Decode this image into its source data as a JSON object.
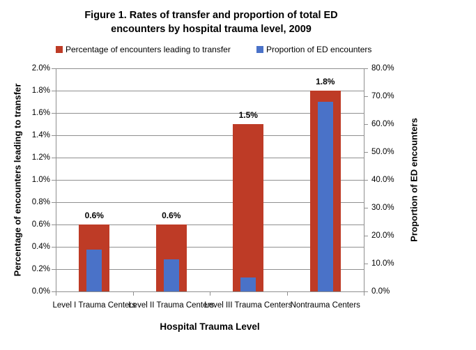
{
  "chart_data": {
    "type": "bar",
    "title": "Figure 1. Rates of transfer and proportion of total ED encounters by hospital trauma level, 2009",
    "title_lines": [
      "Figure 1. Rates of transfer and proportion of total ED",
      "encounters by hospital trauma level, 2009"
    ],
    "categories": [
      "Level I Trauma Centers",
      "Level II Trauma Centers",
      "Level III Trauma Centers",
      "Nontrauma Centers"
    ],
    "series": [
      {
        "name": "Percentage of encounters leading to transfer",
        "axis": "left",
        "color": "#BE3B26",
        "values": [
          0.6,
          0.6,
          1.5,
          1.8
        ],
        "data_labels": [
          "0.6%",
          "0.6%",
          "1.5%",
          "1.8%"
        ]
      },
      {
        "name": "Proportion of ED encounters",
        "axis": "right",
        "color": "#4A72C8",
        "values": [
          15.0,
          11.5,
          5.0,
          68.0
        ],
        "data_labels": []
      }
    ],
    "left_axis": {
      "title": "Percentage of encounters leading to transfer",
      "min": 0.0,
      "max": 2.0,
      "ticks": [
        "2.0%",
        "1.8%",
        "1.6%",
        "1.4%",
        "1.2%",
        "1.0%",
        "0.8%",
        "0.6%",
        "0.4%",
        "0.2%",
        "0.0%"
      ]
    },
    "right_axis": {
      "title": "Proportion of ED encounters",
      "min": 0.0,
      "max": 80.0,
      "ticks": [
        "80.0%",
        "70.0%",
        "60.0%",
        "50.0%",
        "40.0%",
        "30.0%",
        "20.0%",
        "10.0%",
        "0.0%"
      ]
    },
    "xlabel": "Hospital Trauma Level",
    "grid": true,
    "legend_position": "top",
    "colors": {
      "gridline": "#8f8f8f",
      "text": "#000000",
      "background": "#ffffff"
    }
  }
}
